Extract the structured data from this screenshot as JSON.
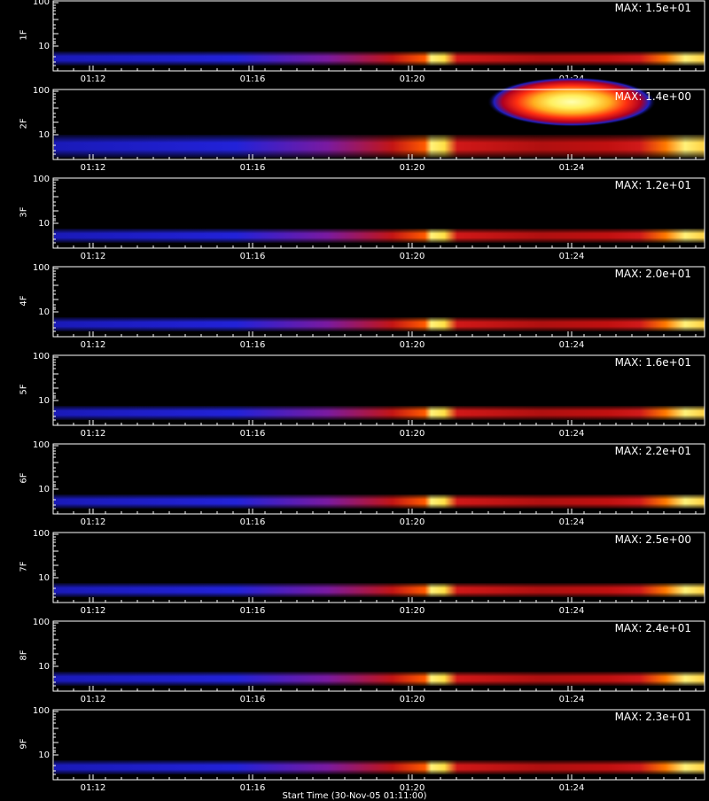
{
  "chart_data": [
    {
      "type": "heatmap",
      "ylabel": "1F",
      "max_label": "MAX: 1.5e+01",
      "y_ticks": [
        "100",
        "10"
      ],
      "x_ticks": [
        "01:12",
        "01:16",
        "01:20",
        "01:24"
      ],
      "cloud": false
    },
    {
      "type": "heatmap",
      "ylabel": "2F",
      "max_label": "MAX: 1.4e+00",
      "y_ticks": [
        "100",
        "10"
      ],
      "x_ticks": [
        "01:12",
        "01:16",
        "01:20",
        "01:24"
      ],
      "cloud": true
    },
    {
      "type": "heatmap",
      "ylabel": "3F",
      "max_label": "MAX: 1.2e+01",
      "y_ticks": [
        "100",
        "10"
      ],
      "x_ticks": [
        "01:12",
        "01:16",
        "01:20",
        "01:24"
      ],
      "cloud": false
    },
    {
      "type": "heatmap",
      "ylabel": "4F",
      "max_label": "MAX: 2.0e+01",
      "y_ticks": [
        "100",
        "10"
      ],
      "x_ticks": [
        "01:12",
        "01:16",
        "01:20",
        "01:24"
      ],
      "cloud": false
    },
    {
      "type": "heatmap",
      "ylabel": "5F",
      "max_label": "MAX: 1.6e+01",
      "y_ticks": [
        "100",
        "10"
      ],
      "x_ticks": [
        "01:12",
        "01:16",
        "01:20",
        "01:24"
      ],
      "cloud": false
    },
    {
      "type": "heatmap",
      "ylabel": "6F",
      "max_label": "MAX: 2.2e+01",
      "y_ticks": [
        "100",
        "10"
      ],
      "x_ticks": [
        "01:12",
        "01:16",
        "01:20",
        "01:24"
      ],
      "cloud": false
    },
    {
      "type": "heatmap",
      "ylabel": "7F",
      "max_label": "MAX: 2.5e+00",
      "y_ticks": [
        "100",
        "10"
      ],
      "x_ticks": [
        "01:12",
        "01:16",
        "01:20",
        "01:24"
      ],
      "cloud": false
    },
    {
      "type": "heatmap",
      "ylabel": "8F",
      "max_label": "MAX: 2.4e+01",
      "y_ticks": [
        "100",
        "10"
      ],
      "x_ticks": [
        "01:12",
        "01:16",
        "01:20",
        "01:24"
      ],
      "cloud": false
    },
    {
      "type": "heatmap",
      "ylabel": "9F",
      "max_label": "MAX: 2.3e+01",
      "y_ticks": [
        "100",
        "10"
      ],
      "x_ticks": [
        "01:12",
        "01:16",
        "01:20",
        "01:24"
      ],
      "cloud": false
    }
  ],
  "x_axis_title": "Start Time (30-Nov-05 01:11:00)",
  "colors": {
    "background": "#000000",
    "axis": "#ffffff",
    "band_low": "#1b1bd0",
    "band_mid": "#cc1010",
    "band_high": "#fff27a"
  }
}
